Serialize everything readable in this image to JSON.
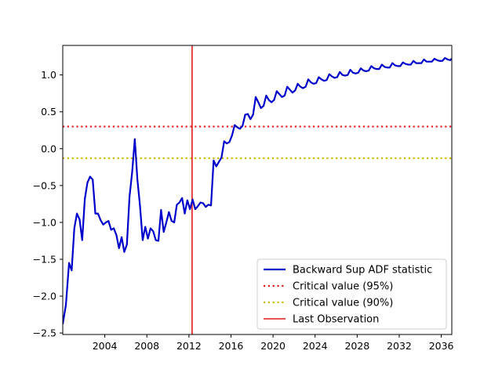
{
  "chart_data": {
    "type": "line",
    "title": "",
    "xlabel": "",
    "ylabel": "",
    "xlim": [
      2000.0,
      2037.0
    ],
    "ylim": [
      -2.52,
      1.4
    ],
    "x_ticks": [
      2004,
      2008,
      2012,
      2016,
      2020,
      2024,
      2028,
      2032,
      2036
    ],
    "x_tick_labels": [
      "2004",
      "2008",
      "2012",
      "2016",
      "2020",
      "2024",
      "2028",
      "2032",
      "2036"
    ],
    "y_ticks": [
      -2.5,
      -2.0,
      -1.5,
      -1.0,
      -0.5,
      0.0,
      0.5,
      1.0
    ],
    "y_tick_labels": [
      "−2.5",
      "−2.0",
      "−1.5",
      "−1.0",
      "−0.5",
      "0.0",
      "0.5",
      "1.0"
    ],
    "grid": false,
    "legend_position": "lower-right",
    "legend": [
      {
        "label": "Backward Sup ADF statistic",
        "color": "#0000cc",
        "style": "solid"
      },
      {
        "label": "Critical value (95%)",
        "color": "#e41a1c",
        "style": "dotted"
      },
      {
        "label": "Critical value (90%)",
        "color": "#ccbb00",
        "style": "dotted"
      },
      {
        "label": "Last Observation",
        "color": "#e41a1c",
        "style": "solid"
      }
    ],
    "hlines": [
      {
        "name": "Critical value (95%)",
        "y": 0.3,
        "color": "#e41a1c"
      },
      {
        "name": "Critical value (90%)",
        "y": -0.13,
        "color": "#ccbb00"
      }
    ],
    "vlines": [
      {
        "name": "Last Observation",
        "x": 2012.3,
        "color": "#e41a1c"
      }
    ],
    "series": [
      {
        "name": "Backward Sup ADF statistic",
        "color": "#0000cc",
        "points": [
          [
            2000.0,
            -2.38
          ],
          [
            2000.3,
            -2.12
          ],
          [
            2000.6,
            -1.55
          ],
          [
            2000.85,
            -1.65
          ],
          [
            2001.1,
            -1.08
          ],
          [
            2001.35,
            -0.88
          ],
          [
            2001.6,
            -0.96
          ],
          [
            2001.85,
            -1.24
          ],
          [
            2002.1,
            -0.68
          ],
          [
            2002.35,
            -0.46
          ],
          [
            2002.6,
            -0.38
          ],
          [
            2002.85,
            -0.42
          ],
          [
            2003.1,
            -0.88
          ],
          [
            2003.35,
            -0.88
          ],
          [
            2003.6,
            -0.97
          ],
          [
            2003.85,
            -1.03
          ],
          [
            2004.1,
            -1.0
          ],
          [
            2004.35,
            -0.98
          ],
          [
            2004.6,
            -1.1
          ],
          [
            2004.85,
            -1.08
          ],
          [
            2005.1,
            -1.17
          ],
          [
            2005.35,
            -1.35
          ],
          [
            2005.6,
            -1.2
          ],
          [
            2005.85,
            -1.4
          ],
          [
            2006.1,
            -1.3
          ],
          [
            2006.35,
            -0.65
          ],
          [
            2006.6,
            -0.32
          ],
          [
            2006.85,
            0.13
          ],
          [
            2007.1,
            -0.42
          ],
          [
            2007.35,
            -0.78
          ],
          [
            2007.6,
            -1.24
          ],
          [
            2007.85,
            -1.06
          ],
          [
            2008.1,
            -1.22
          ],
          [
            2008.35,
            -1.08
          ],
          [
            2008.6,
            -1.12
          ],
          [
            2008.85,
            -1.24
          ],
          [
            2009.1,
            -1.25
          ],
          [
            2009.35,
            -0.83
          ],
          [
            2009.6,
            -1.13
          ],
          [
            2009.85,
            -1.0
          ],
          [
            2010.1,
            -0.86
          ],
          [
            2010.35,
            -0.98
          ],
          [
            2010.6,
            -1.0
          ],
          [
            2010.85,
            -0.76
          ],
          [
            2011.1,
            -0.73
          ],
          [
            2011.35,
            -0.67
          ],
          [
            2011.6,
            -0.88
          ],
          [
            2011.85,
            -0.7
          ],
          [
            2012.1,
            -0.82
          ],
          [
            2012.35,
            -0.69
          ],
          [
            2012.6,
            -0.82
          ],
          [
            2012.85,
            -0.78
          ],
          [
            2013.1,
            -0.73
          ],
          [
            2013.35,
            -0.74
          ],
          [
            2013.6,
            -0.79
          ],
          [
            2013.85,
            -0.76
          ],
          [
            2014.1,
            -0.77
          ],
          [
            2014.35,
            -0.16
          ],
          [
            2014.6,
            -0.24
          ],
          [
            2014.85,
            -0.18
          ],
          [
            2015.1,
            -0.12
          ],
          [
            2015.35,
            0.1
          ],
          [
            2015.6,
            0.07
          ],
          [
            2015.85,
            0.09
          ],
          [
            2016.1,
            0.18
          ],
          [
            2016.35,
            0.32
          ],
          [
            2016.6,
            0.29
          ],
          [
            2016.85,
            0.27
          ],
          [
            2017.1,
            0.31
          ],
          [
            2017.35,
            0.46
          ],
          [
            2017.6,
            0.47
          ],
          [
            2017.85,
            0.4
          ],
          [
            2018.1,
            0.46
          ],
          [
            2018.35,
            0.7
          ],
          [
            2018.6,
            0.63
          ],
          [
            2018.85,
            0.55
          ],
          [
            2019.1,
            0.58
          ],
          [
            2019.35,
            0.72
          ],
          [
            2019.6,
            0.66
          ],
          [
            2019.85,
            0.63
          ],
          [
            2020.1,
            0.66
          ],
          [
            2020.35,
            0.78
          ],
          [
            2020.6,
            0.74
          ],
          [
            2020.85,
            0.7
          ],
          [
            2021.1,
            0.72
          ],
          [
            2021.35,
            0.84
          ],
          [
            2021.6,
            0.8
          ],
          [
            2021.85,
            0.76
          ],
          [
            2022.1,
            0.79
          ],
          [
            2022.35,
            0.88
          ],
          [
            2022.6,
            0.84
          ],
          [
            2022.85,
            0.82
          ],
          [
            2023.1,
            0.84
          ],
          [
            2023.35,
            0.94
          ],
          [
            2023.6,
            0.9
          ],
          [
            2023.85,
            0.88
          ],
          [
            2024.1,
            0.89
          ],
          [
            2024.35,
            0.97
          ],
          [
            2024.6,
            0.94
          ],
          [
            2024.85,
            0.92
          ],
          [
            2025.1,
            0.93
          ],
          [
            2025.35,
            1.01
          ],
          [
            2025.6,
            0.98
          ],
          [
            2025.85,
            0.96
          ],
          [
            2026.1,
            0.97
          ],
          [
            2026.35,
            1.04
          ],
          [
            2026.6,
            1.0
          ],
          [
            2026.85,
            0.99
          ],
          [
            2027.1,
            1.0
          ],
          [
            2027.35,
            1.07
          ],
          [
            2027.6,
            1.03
          ],
          [
            2027.85,
            1.02
          ],
          [
            2028.1,
            1.03
          ],
          [
            2028.35,
            1.09
          ],
          [
            2028.6,
            1.06
          ],
          [
            2028.85,
            1.05
          ],
          [
            2029.1,
            1.06
          ],
          [
            2029.35,
            1.12
          ],
          [
            2029.6,
            1.09
          ],
          [
            2029.85,
            1.08
          ],
          [
            2030.1,
            1.08
          ],
          [
            2030.35,
            1.14
          ],
          [
            2030.6,
            1.11
          ],
          [
            2030.85,
            1.1
          ],
          [
            2031.1,
            1.1
          ],
          [
            2031.35,
            1.16
          ],
          [
            2031.6,
            1.13
          ],
          [
            2031.85,
            1.12
          ],
          [
            2032.1,
            1.12
          ],
          [
            2032.35,
            1.17
          ],
          [
            2032.6,
            1.15
          ],
          [
            2032.85,
            1.14
          ],
          [
            2033.1,
            1.14
          ],
          [
            2033.35,
            1.19
          ],
          [
            2033.6,
            1.16
          ],
          [
            2033.85,
            1.16
          ],
          [
            2034.1,
            1.16
          ],
          [
            2034.35,
            1.21
          ],
          [
            2034.6,
            1.18
          ],
          [
            2034.85,
            1.18
          ],
          [
            2035.1,
            1.18
          ],
          [
            2035.35,
            1.22
          ],
          [
            2035.6,
            1.2
          ],
          [
            2035.85,
            1.19
          ],
          [
            2036.1,
            1.19
          ],
          [
            2036.35,
            1.23
          ],
          [
            2036.6,
            1.21
          ],
          [
            2036.85,
            1.2
          ],
          [
            2037.0,
            1.22
          ]
        ]
      }
    ]
  }
}
